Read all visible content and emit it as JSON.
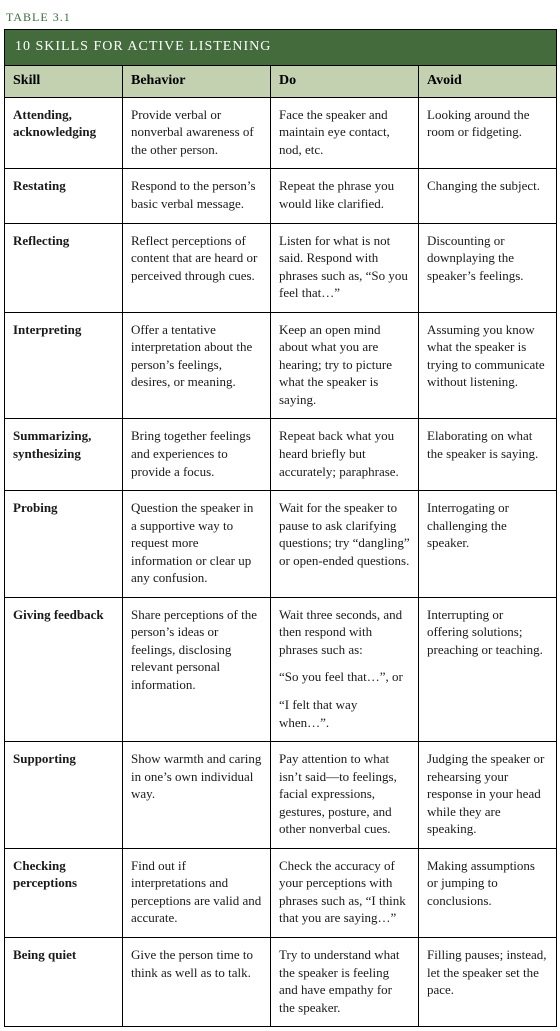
{
  "table_label": "TABLE 3.1",
  "title": "10 SKILLS FOR ACTIVE LISTENING",
  "colors": {
    "title_bg": "#436b3c",
    "title_fg": "#ffffff",
    "header_bg": "#c4d1b0",
    "label_fg": "#3b6e3b",
    "border": "#000000"
  },
  "headers": {
    "c1": "Skill",
    "c2": "Behavior",
    "c3": "Do",
    "c4": "Avoid"
  },
  "rows": [
    {
      "skill": "Attending, acknowledging",
      "behavior": "Provide verbal or nonverbal awareness of the other person.",
      "do": "Face the speaker and maintain eye contact, nod, etc.",
      "avoid": "Looking around the room or fidgeting."
    },
    {
      "skill": "Restating",
      "behavior": "Respond to the person’s basic verbal message.",
      "do": "Repeat the phrase you would like clarified.",
      "avoid": "Changing the subject."
    },
    {
      "skill": "Reflecting",
      "behavior": "Reflect perceptions of content that are heard or perceived through cues.",
      "do": "Listen for what is not said. Respond with phrases such as, “So you feel that…”",
      "avoid": "Discounting or downplaying the speaker’s feelings."
    },
    {
      "skill": "Interpreting",
      "behavior": "Offer a tentative interpretation about the person’s feelings, desires, or meaning.",
      "do": "Keep an open mind about what you are hearing; try to picture what the speaker is saying.",
      "avoid": "Assuming you know what the speaker is trying to communicate without listening."
    },
    {
      "skill": "Summarizing, synthesizing",
      "behavior": "Bring together feelings and experiences to provide a focus.",
      "do": "Repeat back what you heard briefly but accurately; paraphrase.",
      "avoid": "Elaborating on what the speaker is saying."
    },
    {
      "skill": "Probing",
      "behavior": "Question the speaker in a supportive way to request more information or clear up any confusion.",
      "do": "Wait for the speaker to pause to ask clarifying questions; try “dangling” or open-ended questions.",
      "avoid": "Interrogating or challenging the speaker."
    },
    {
      "skill": "Giving feedback",
      "behavior": "Share perceptions of the person’s ideas or feelings, disclosing relevant personal information.",
      "do_multi": [
        "Wait three seconds, and then respond with phrases such as:",
        "“So you feel that…”, or",
        "“I felt that way when…”."
      ],
      "avoid": "Interrupting or offering solutions; preaching or teaching."
    },
    {
      "skill": "Supporting",
      "behavior": "Show warmth and caring in one’s own individual way.",
      "do": "Pay attention to what isn’t said—to feelings, facial expressions, gestures, posture, and other nonverbal cues.",
      "avoid": "Judging the speaker or rehearsing your response in your head while they are speaking."
    },
    {
      "skill": "Checking perceptions",
      "behavior": "Find out if interpretations and perceptions are valid and accurate.",
      "do": "Check the accuracy of your perceptions with phrases such as, “I think that you are saying…”",
      "avoid": "Making assumptions or jumping to conclusions."
    },
    {
      "skill": "Being quiet",
      "behavior": "Give the person time to think as well as to talk.",
      "do": "Try to understand what the speaker is feeling and have empathy for the speaker.",
      "avoid": "Filling pauses; instead, let the speaker set the pace."
    }
  ]
}
